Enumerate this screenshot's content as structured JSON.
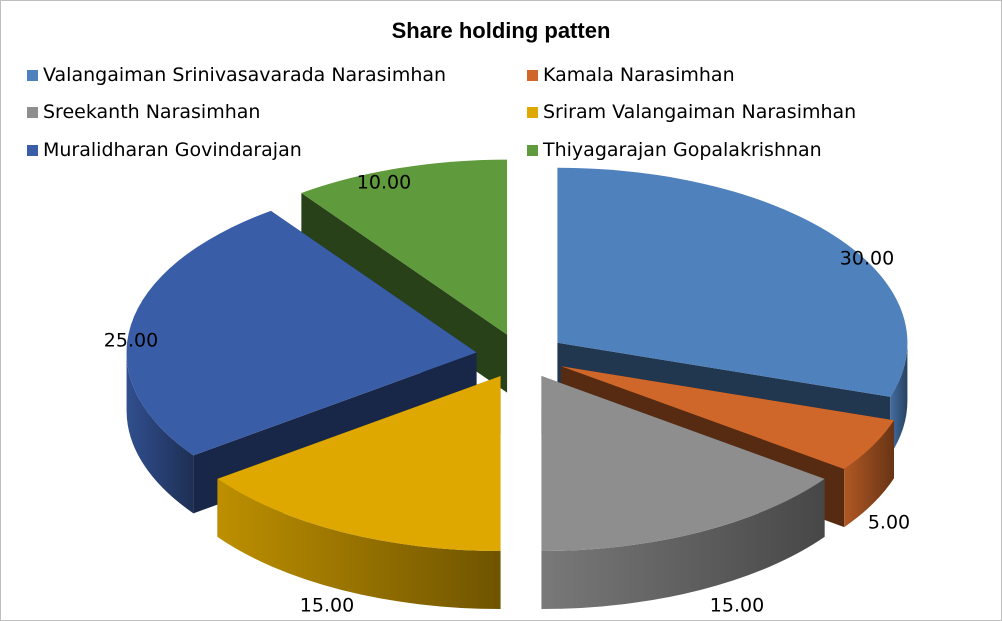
{
  "chart_data": {
    "type": "pie",
    "title": "Share holding patten",
    "legend_position": "top",
    "categories": [
      "Valangaiman Srinivasavarada Narasimhan",
      "Kamala Narasimhan",
      "Sreekanth Narasimhan",
      "Sriram Valangaiman Narasimhan",
      "Muralidharan Govindarajan",
      "Thiyagarajan Gopalakrishnan"
    ],
    "values": [
      30,
      5,
      15,
      15,
      25,
      10
    ],
    "value_labels": [
      "30.00",
      "5.00",
      "15.00",
      "15.00",
      "25.00",
      "10.00"
    ],
    "colors": [
      "#4f81bd",
      "#d0672a",
      "#8e8e8e",
      "#dea800",
      "#3a5da8",
      "#5f9a3c"
    ],
    "style": "3d-exploded"
  }
}
